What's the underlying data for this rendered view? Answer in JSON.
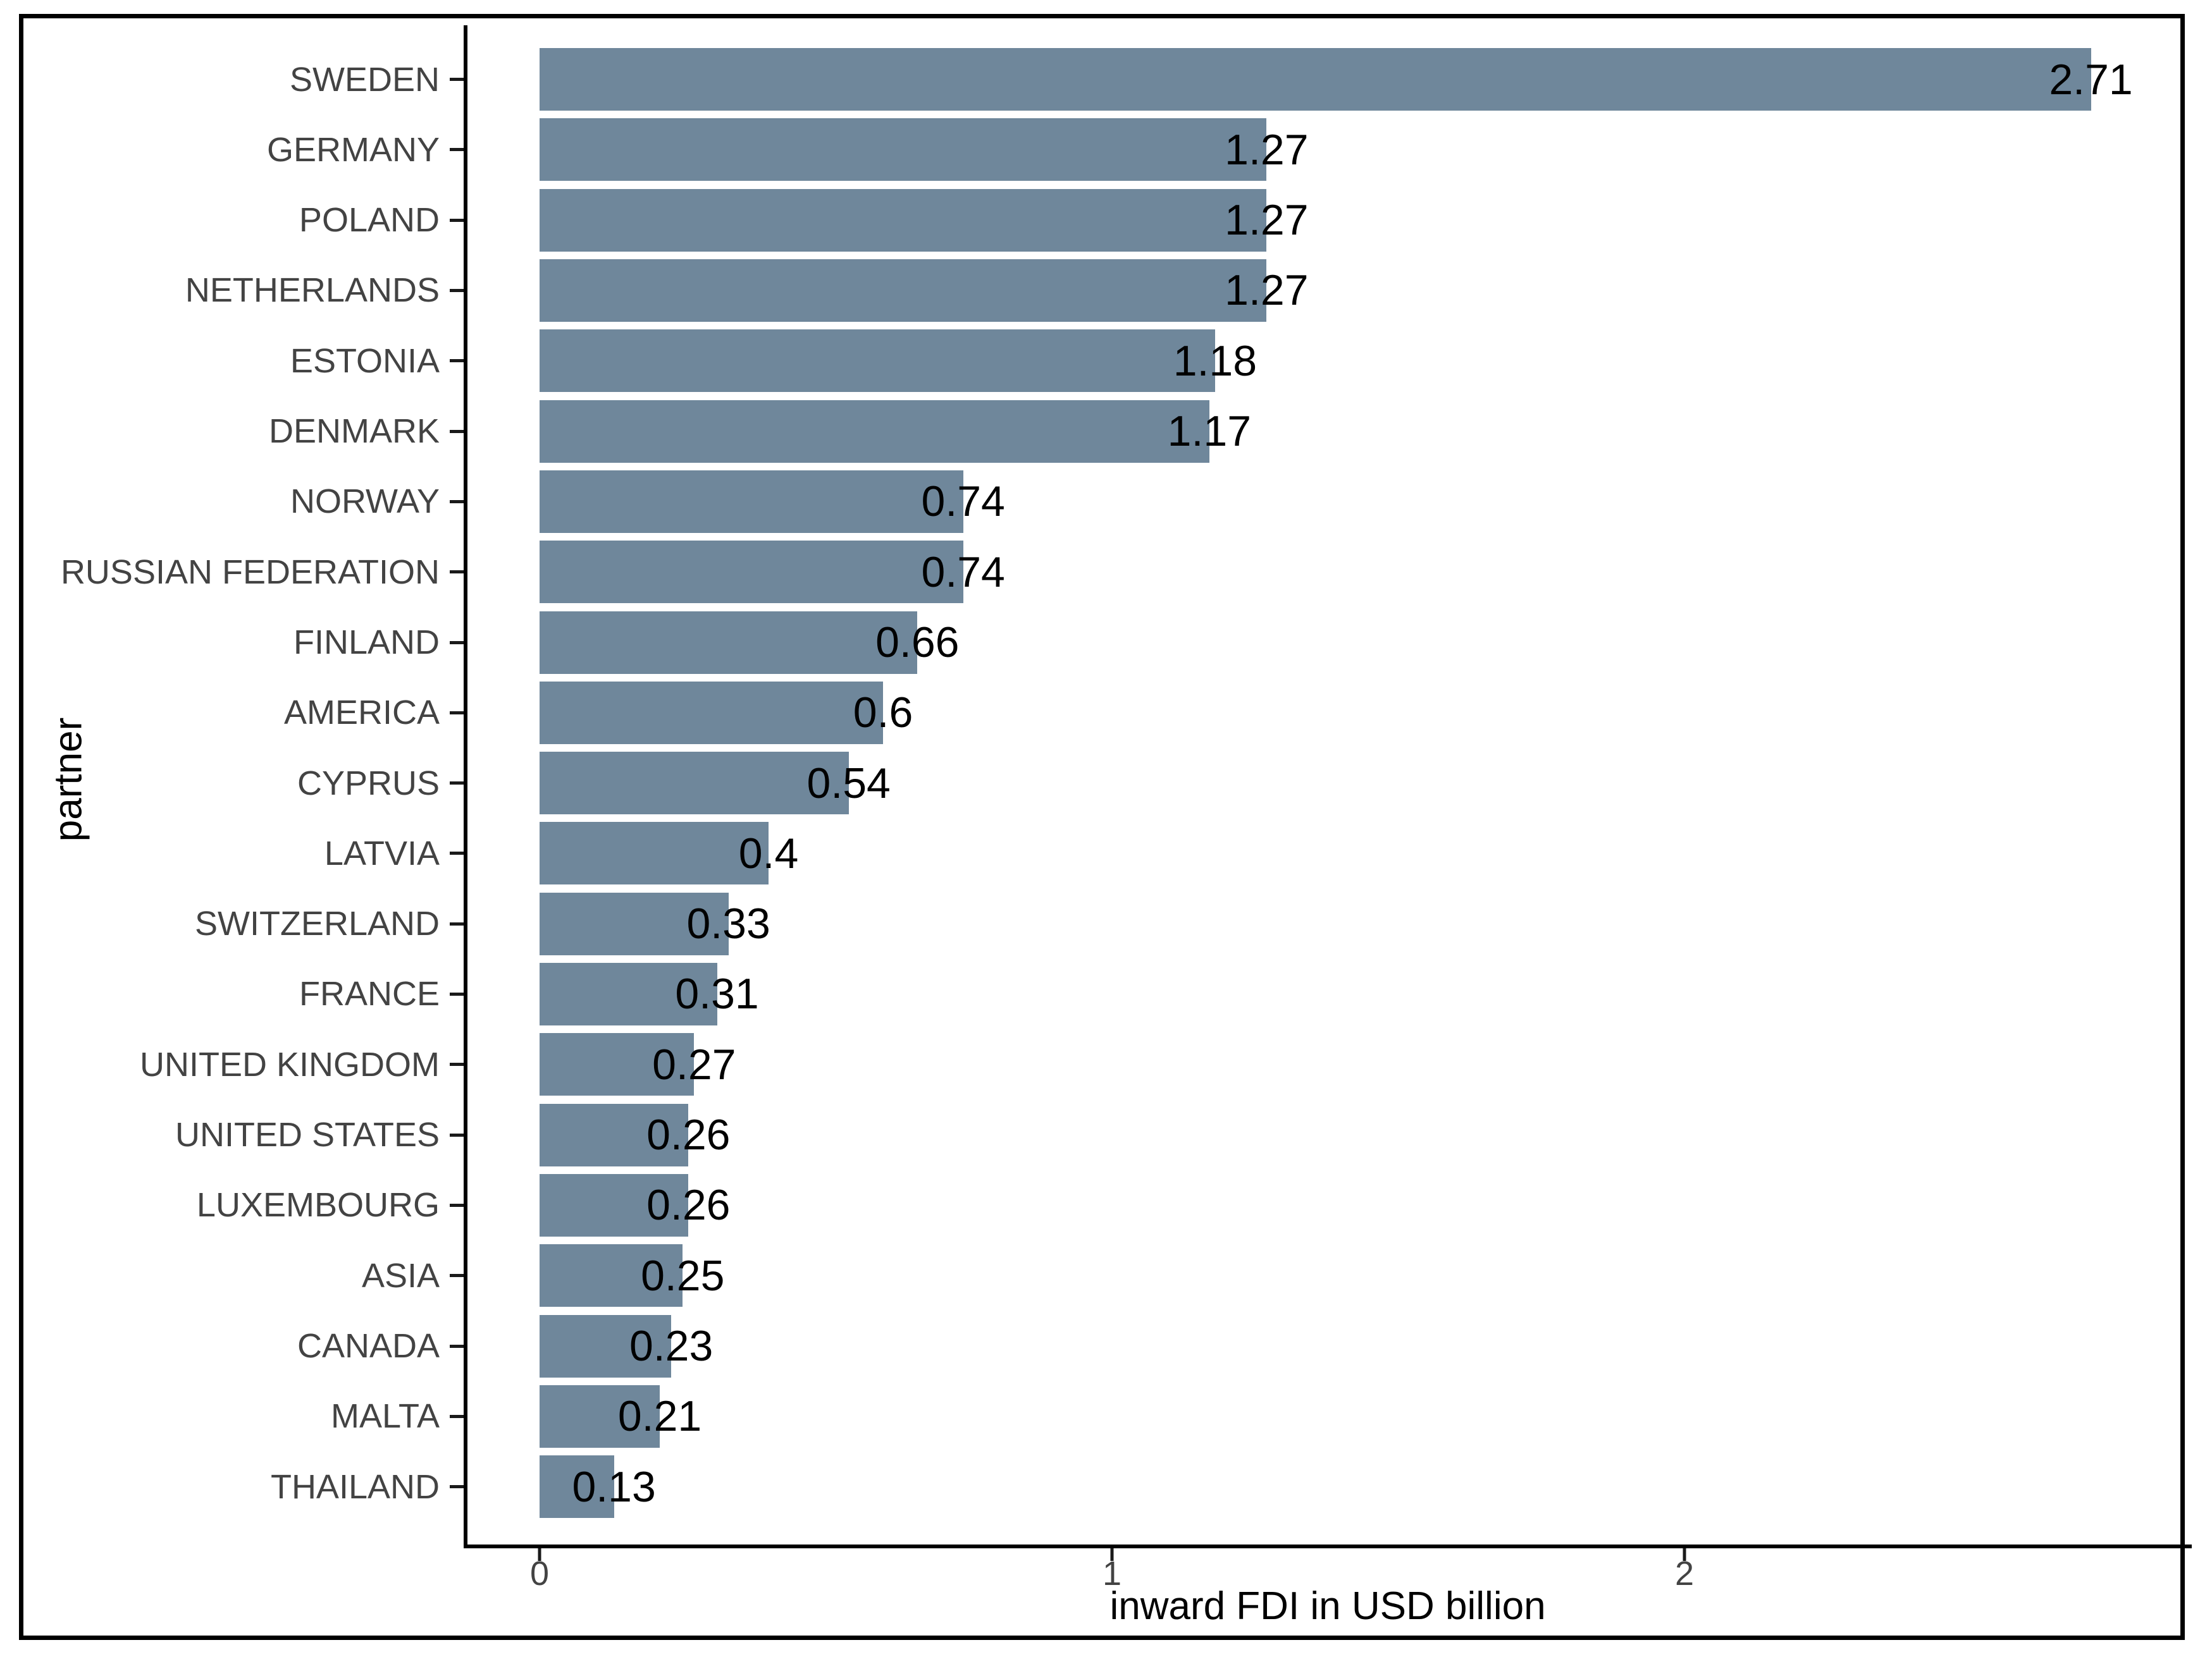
{
  "figure": {
    "background_color": "#ffffff",
    "border_color": "#000000"
  },
  "chart_data": {
    "type": "bar",
    "orientation": "horizontal",
    "title": "",
    "xlabel": "inward FDI in USD billion",
    "ylabel": "partner",
    "categories": [
      "SWEDEN",
      "GERMANY",
      "POLAND",
      "NETHERLANDS",
      "ESTONIA",
      "DENMARK",
      "NORWAY",
      "RUSSIAN FEDERATION",
      "FINLAND",
      "AMERICA",
      "CYPRUS",
      "LATVIA",
      "SWITZERLAND",
      "FRANCE",
      "UNITED KINGDOM",
      "UNITED STATES",
      "LUXEMBOURG",
      "ASIA",
      "CANADA",
      "MALTA",
      "THAILAND"
    ],
    "values": [
      2.71,
      1.27,
      1.27,
      1.27,
      1.18,
      1.17,
      0.74,
      0.74,
      0.66,
      0.6,
      0.54,
      0.4,
      0.33,
      0.31,
      0.27,
      0.26,
      0.26,
      0.25,
      0.23,
      0.21,
      0.13
    ],
    "value_labels": [
      "2.71",
      "1.27",
      "1.27",
      "1.27",
      "1.18",
      "1.17",
      "0.74",
      "0.74",
      "0.66",
      "0.6",
      "0.54",
      "0.4",
      "0.33",
      "0.31",
      "0.27",
      "0.26",
      "0.26",
      "0.25",
      "0.23",
      "0.21",
      "0.13"
    ],
    "x_ticks": [
      "0",
      "1",
      "2"
    ],
    "x_tick_values": [
      0,
      1,
      2
    ],
    "xlim": [
      0,
      2.886
    ],
    "bar_color": "#6f879b",
    "value_label_color": "#000000",
    "axis_text_color": "#434343",
    "axis_line_color": "#000000",
    "grid": false,
    "legend": false
  }
}
